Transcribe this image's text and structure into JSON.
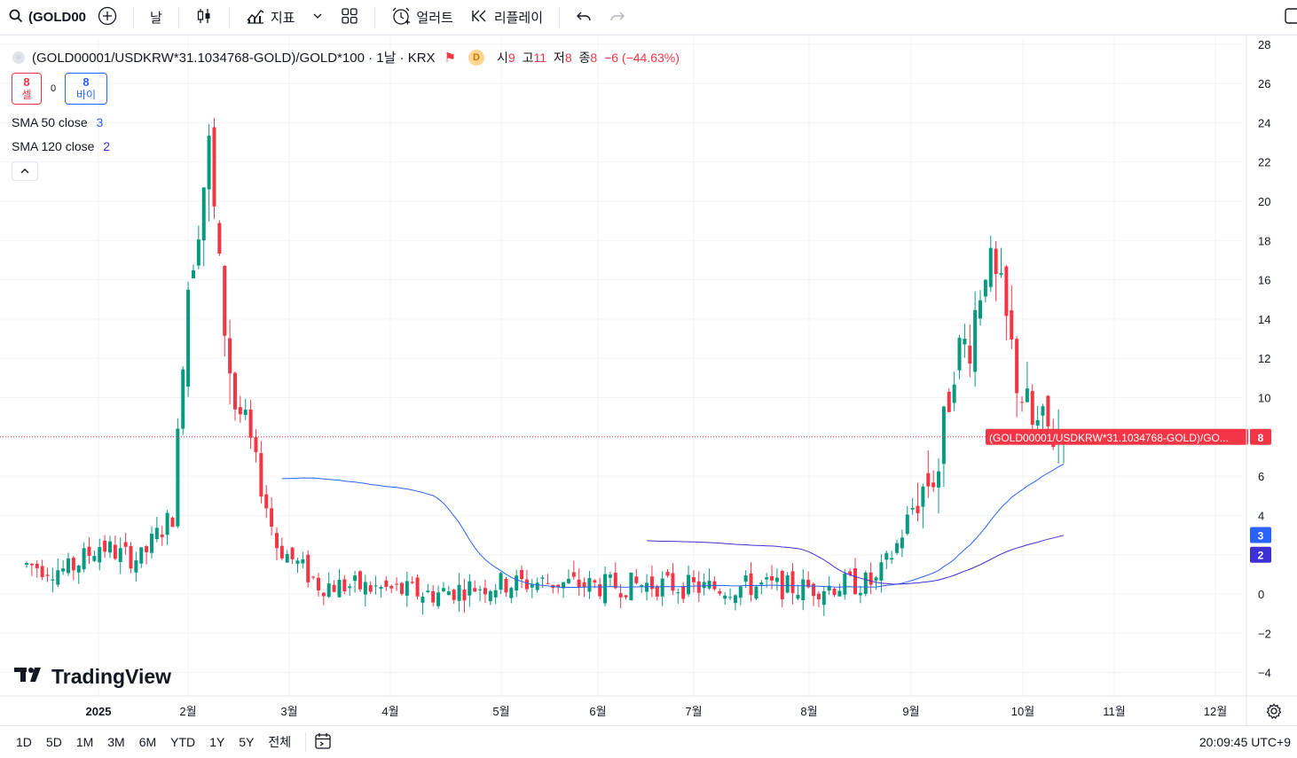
{
  "toolbar": {
    "symbol": "(GOLD00",
    "interval": "날",
    "indicators_label": "지표",
    "alert_label": "얼러트",
    "replay_label": "리플레이"
  },
  "legend": {
    "title": "(GOLD00001/USDKRW*31.1034768-GOLD)/GOLD*100 · 1날 · KRX",
    "badge": "D",
    "open_label": "시",
    "open": "9",
    "high_label": "고",
    "high": "11",
    "low_label": "저",
    "low": "8",
    "close_label": "종",
    "close": "8",
    "change": "−6 (−44.63%)"
  },
  "trade": {
    "sell_price": "8",
    "sell_label": "셀",
    "spread": "0",
    "buy_price": "8",
    "buy_label": "바이"
  },
  "indicators": [
    {
      "name": "SMA 50 close",
      "value": "3",
      "color": "#2962ff"
    },
    {
      "name": "SMA 120 close",
      "value": "2",
      "color": "#3f2fd6"
    }
  ],
  "price_scale": {
    "ticks": [
      "28",
      "26",
      "24",
      "22",
      "20",
      "18",
      "16",
      "14",
      "12",
      "10",
      "6",
      "4",
      "2",
      "0",
      "−2",
      "−4"
    ],
    "last_price": "8",
    "last_label": "(GOLD00001/USDKRW*31.1034768-GOLD)/GO...",
    "sma50_badge": "3",
    "sma120_badge": "2"
  },
  "time_scale": {
    "labels": [
      "2025",
      "2월",
      "3월",
      "4월",
      "5월",
      "6월",
      "7월",
      "8월",
      "9월",
      "10월",
      "11월",
      "12월"
    ]
  },
  "ranges": [
    "1D",
    "5D",
    "1M",
    "3M",
    "6M",
    "YTD",
    "1Y",
    "5Y",
    "전체"
  ],
  "clock": "20:09:45 UTC+9",
  "logo": "TradingView",
  "colors": {
    "up": "#089981",
    "down": "#f23645",
    "sma50": "#2962ff",
    "sma120": "#3f2fd6"
  },
  "chart_data": {
    "type": "candlestick",
    "date_range": [
      "2025-01-02",
      "2025-10-16"
    ],
    "ylim": [
      -5,
      28
    ],
    "highlights": [
      {
        "date": "2025-01-02",
        "approx_close": 1.5
      },
      {
        "date": "2025-02-13",
        "approx_high": 25,
        "approx_low": 21
      },
      {
        "date": "2025-02-24",
        "approx_close": 9
      },
      {
        "date": "2025-05-09",
        "approx_low": -2.5
      },
      {
        "date": "2025-10-10",
        "approx_high": 19
      },
      {
        "date": "2025-10-16",
        "open": 9,
        "high": 11,
        "low": 8,
        "close": 8
      }
    ],
    "series": [
      {
        "name": "SMA 50 close",
        "last": 3
      },
      {
        "name": "SMA 120 close",
        "last": 2
      }
    ]
  }
}
